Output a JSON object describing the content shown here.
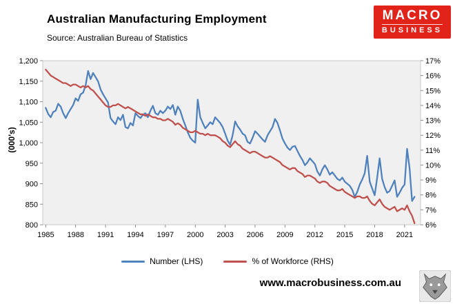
{
  "header": {
    "source": "Source: Australian Bureau of Statistics",
    "logo": {
      "line1": "MACRO",
      "line2": "BUSINESS",
      "bg_color": "#e2231a",
      "text_color": "#ffffff"
    }
  },
  "legend": [
    {
      "label": "Number (LHS)",
      "color": "#4f81bd"
    },
    {
      "label": "% of Workforce (RHS)",
      "color": "#c0504d"
    }
  ],
  "footer": {
    "website": "www.macrobusiness.com.au",
    "logo_icon": "macrobusiness-wolf-logo"
  },
  "chart_data": {
    "type": "line",
    "title": "Australian Manufacturing Employment",
    "subtitle": "Source: Australian Bureau of Statistics",
    "ylabel_left": "(000's)",
    "ylim_left": [
      800,
      1200
    ],
    "ytick_step_left": 50,
    "ylim_right": [
      6,
      17
    ],
    "ytick_step_right": 1,
    "xlim": [
      1984.7,
      2022.6
    ],
    "x_ticks": [
      1985,
      1988,
      1991,
      1994,
      1997,
      2000,
      2003,
      2006,
      2009,
      2012,
      2015,
      2018,
      2021
    ],
    "plot_bg": "#f0f0f0",
    "grid": false,
    "legend_position": "bottom",
    "series": [
      {
        "name": "Number (LHS)",
        "axis": "left",
        "color": "#4f81bd",
        "x_start": 1985,
        "x_step": 0.25,
        "values": [
          1085,
          1070,
          1062,
          1075,
          1078,
          1095,
          1088,
          1072,
          1060,
          1072,
          1082,
          1092,
          1108,
          1102,
          1118,
          1122,
          1140,
          1175,
          1155,
          1170,
          1160,
          1150,
          1130,
          1118,
          1108,
          1098,
          1060,
          1052,
          1045,
          1062,
          1055,
          1068,
          1038,
          1035,
          1048,
          1042,
          1072,
          1065,
          1060,
          1068,
          1072,
          1062,
          1078,
          1090,
          1072,
          1068,
          1078,
          1072,
          1078,
          1088,
          1082,
          1092,
          1068,
          1088,
          1078,
          1058,
          1042,
          1025,
          1012,
          1005,
          1000,
          1105,
          1062,
          1048,
          1035,
          1042,
          1050,
          1045,
          1062,
          1055,
          1048,
          1038,
          1022,
          1005,
          995,
          1018,
          1052,
          1040,
          1032,
          1022,
          1018,
          1002,
          998,
          1012,
          1028,
          1022,
          1015,
          1008,
          1002,
          1018,
          1028,
          1038,
          1058,
          1048,
          1030,
          1010,
          998,
          988,
          982,
          990,
          992,
          980,
          968,
          958,
          945,
          952,
          962,
          955,
          948,
          930,
          920,
          935,
          945,
          935,
          922,
          928,
          920,
          912,
          908,
          915,
          905,
          900,
          895,
          885,
          868,
          880,
          898,
          910,
          925,
          968,
          905,
          888,
          872,
          915,
          962,
          912,
          892,
          878,
          882,
          895,
          908,
          868,
          878,
          890,
          898,
          985,
          938,
          858,
          868
        ]
      },
      {
        "name": "% of Workforce (RHS)",
        "axis": "right",
        "color": "#c0504d",
        "x_start": 1985,
        "x_step": 0.25,
        "values": [
          16.4,
          16.2,
          16.0,
          15.9,
          15.8,
          15.7,
          15.6,
          15.5,
          15.5,
          15.4,
          15.3,
          15.4,
          15.4,
          15.3,
          15.2,
          15.3,
          15.2,
          15.3,
          15.1,
          15.0,
          14.8,
          14.6,
          14.4,
          14.2,
          14.0,
          13.9,
          13.9,
          14.0,
          14.0,
          14.1,
          14.0,
          13.9,
          13.8,
          13.9,
          13.8,
          13.7,
          13.6,
          13.5,
          13.4,
          13.4,
          13.3,
          13.4,
          13.3,
          13.2,
          13.2,
          13.1,
          13.1,
          13.0,
          13.0,
          13.1,
          13.0,
          12.9,
          12.7,
          12.8,
          12.7,
          12.5,
          12.4,
          12.3,
          12.2,
          12.2,
          12.3,
          12.2,
          12.1,
          12.1,
          12.0,
          12.1,
          12.0,
          12.0,
          12.0,
          11.9,
          11.8,
          11.6,
          11.5,
          11.3,
          11.2,
          11.4,
          11.6,
          11.4,
          11.3,
          11.1,
          11.0,
          10.9,
          10.8,
          10.9,
          10.9,
          10.8,
          10.7,
          10.6,
          10.5,
          10.5,
          10.6,
          10.5,
          10.4,
          10.3,
          10.2,
          10.0,
          9.9,
          9.8,
          9.7,
          9.8,
          9.8,
          9.6,
          9.5,
          9.4,
          9.2,
          9.3,
          9.3,
          9.2,
          9.1,
          8.9,
          8.8,
          8.9,
          8.9,
          8.8,
          8.6,
          8.5,
          8.4,
          8.3,
          8.3,
          8.4,
          8.2,
          8.1,
          8.0,
          7.9,
          7.8,
          7.9,
          7.9,
          7.8,
          7.8,
          7.9,
          7.6,
          7.4,
          7.3,
          7.5,
          7.7,
          7.4,
          7.2,
          7.1,
          7.0,
          7.1,
          7.2,
          6.9,
          7.0,
          7.1,
          7.0,
          7.3,
          6.9,
          6.6,
          6.1
        ]
      }
    ]
  }
}
